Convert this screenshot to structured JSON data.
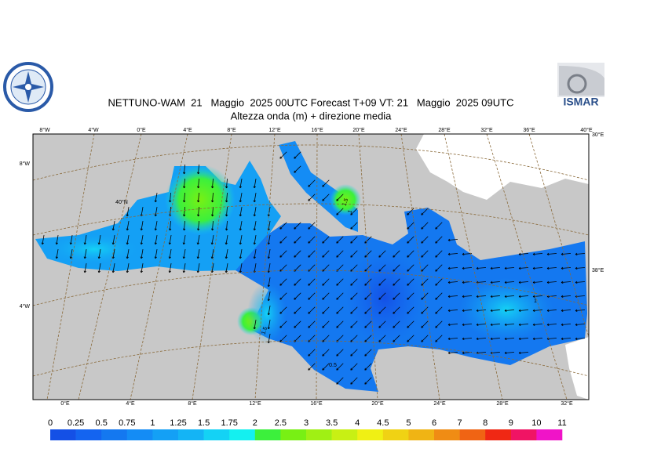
{
  "header": {
    "title": "NETTUNO-WAM  21   Maggio  2025 00UTC Forecast T+09 VT: 21   Maggio  2025 09UTC",
    "subtitle": "Altezza onda (m) + direzione media",
    "logo_text": "ISMAR"
  },
  "map": {
    "top_labels": [
      "8°W",
      "4°W",
      "0°E",
      "4°E",
      "8°E",
      "12°E",
      "16°E",
      "20°E",
      "24°E",
      "28°E",
      "32°E",
      "36°E",
      "40°E"
    ],
    "bottom_labels": [
      "0°E",
      "4°E",
      "8°E",
      "12°E",
      "16°E",
      "20°E",
      "24°E",
      "28°E",
      "32°E"
    ],
    "left_labels": [
      "8°W",
      "4°W"
    ],
    "inner_labels": [
      "40°N"
    ],
    "right_labels": [
      "30°E",
      "38°E"
    ],
    "contour_labels": [
      "1.5",
      "1",
      "1.5",
      "0.5",
      "1"
    ]
  },
  "colorbar": {
    "labels": [
      0,
      0.25,
      0.5,
      0.75,
      1,
      1.25,
      1.5,
      1.75,
      2,
      2.5,
      3,
      3.5,
      4,
      4.5,
      5,
      6,
      7,
      8,
      9,
      10,
      11
    ],
    "colors": [
      "#1450e6",
      "#1464f0",
      "#1478f0",
      "#148cf5",
      "#14a0f5",
      "#14b4f5",
      "#14d2f5",
      "#14f0f0",
      "#3cf03c",
      "#78f014",
      "#a0f014",
      "#c8f014",
      "#f0f014",
      "#f0d214",
      "#f0b414",
      "#f08c14",
      "#f06414",
      "#f02814",
      "#f01464",
      "#f014c8"
    ]
  }
}
